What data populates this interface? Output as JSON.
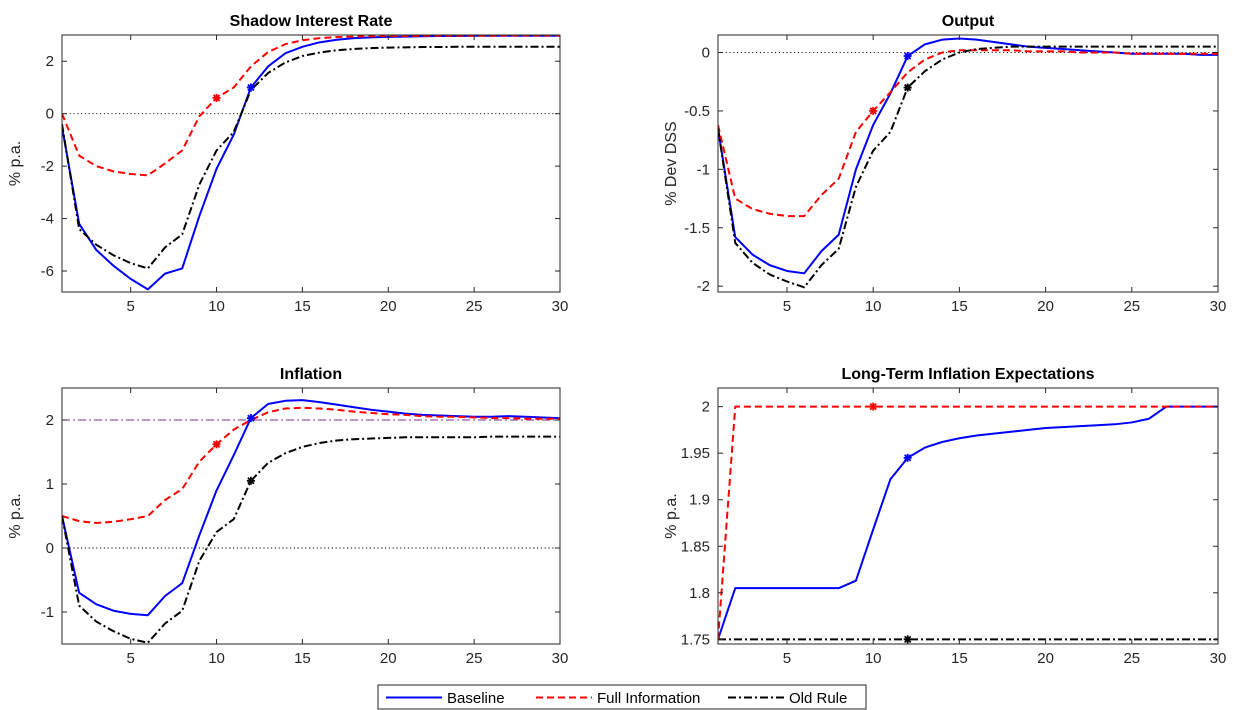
{
  "colors": {
    "baseline": "#0000ff",
    "full_information": "#ff0000",
    "old_rule": "#000000",
    "target_line": "#7e2f8e",
    "zero_line": "#000000"
  },
  "legend": {
    "placement": "bottom-center",
    "entries": [
      {
        "key": "baseline",
        "label": "Baseline",
        "style": "solid"
      },
      {
        "key": "full_information",
        "label": "Full Information",
        "style": "dashed"
      },
      {
        "key": "old_rule",
        "label": "Old Rule",
        "style": "dash-dot"
      }
    ]
  },
  "chart_data": [
    {
      "type": "line",
      "title": "Shadow Interest Rate",
      "ylabel": "% p.a.",
      "xlabel": "",
      "xlim": [
        1,
        30
      ],
      "ylim": [
        -6.8,
        3.0
      ],
      "xticks": [
        5,
        10,
        15,
        20,
        25,
        30
      ],
      "yticks": [
        -6,
        -4,
        -2,
        0,
        2
      ],
      "ref_lines": [
        {
          "y": 0,
          "style": "dotted",
          "color_key": "zero_line"
        }
      ],
      "x": [
        1,
        2,
        3,
        4,
        5,
        6,
        7,
        8,
        9,
        10,
        11,
        12,
        13,
        14,
        15,
        16,
        17,
        18,
        19,
        20,
        21,
        22,
        23,
        24,
        25,
        26,
        27,
        28,
        29,
        30
      ],
      "series": [
        {
          "name": "Baseline",
          "color_key": "baseline",
          "style": "solid",
          "values": [
            -0.5,
            -4.2,
            -5.2,
            -5.8,
            -6.3,
            -6.7,
            -6.1,
            -5.9,
            -3.9,
            -2.1,
            -0.8,
            1.0,
            1.8,
            2.3,
            2.55,
            2.72,
            2.82,
            2.88,
            2.91,
            2.93,
            2.94,
            2.95,
            2.96,
            2.96,
            2.97,
            2.97,
            2.97,
            2.97,
            2.97,
            2.97
          ],
          "markers": [
            {
              "x": 12,
              "y": 1.0
            }
          ]
        },
        {
          "name": "Full Information",
          "color_key": "full_information",
          "style": "dashed",
          "values": [
            0.0,
            -1.6,
            -2.0,
            -2.2,
            -2.3,
            -2.35,
            -1.9,
            -1.4,
            -0.1,
            0.6,
            1.0,
            1.8,
            2.35,
            2.65,
            2.8,
            2.88,
            2.92,
            2.94,
            2.95,
            2.96,
            2.96,
            2.97,
            2.97,
            2.97,
            2.97,
            2.97,
            2.98,
            2.98,
            2.98,
            2.98
          ],
          "markers": [
            {
              "x": 10,
              "y": 0.6
            }
          ]
        },
        {
          "name": "Old Rule",
          "color_key": "old_rule",
          "style": "dash-dot",
          "values": [
            -0.4,
            -4.4,
            -5.0,
            -5.4,
            -5.7,
            -5.9,
            -5.1,
            -4.6,
            -2.7,
            -1.4,
            -0.7,
            0.9,
            1.55,
            1.95,
            2.2,
            2.33,
            2.42,
            2.47,
            2.5,
            2.52,
            2.53,
            2.54,
            2.54,
            2.55,
            2.55,
            2.55,
            2.55,
            2.55,
            2.55,
            2.55
          ],
          "markers": []
        }
      ]
    },
    {
      "type": "line",
      "title": "Output",
      "ylabel": "% Dev DSS",
      "xlabel": "",
      "xlim": [
        1,
        30
      ],
      "ylim": [
        -2.05,
        0.15
      ],
      "xticks": [
        5,
        10,
        15,
        20,
        25,
        30
      ],
      "yticks": [
        -2,
        -1.5,
        -1,
        -0.5,
        0
      ],
      "ref_lines": [
        {
          "y": 0,
          "style": "dotted",
          "color_key": "zero_line"
        }
      ],
      "x": [
        1,
        2,
        3,
        4,
        5,
        6,
        7,
        8,
        9,
        10,
        11,
        12,
        13,
        14,
        15,
        16,
        17,
        18,
        19,
        20,
        21,
        22,
        23,
        24,
        25,
        26,
        27,
        28,
        29,
        30
      ],
      "series": [
        {
          "name": "Baseline",
          "color_key": "baseline",
          "style": "solid",
          "values": [
            -0.65,
            -1.58,
            -1.73,
            -1.82,
            -1.87,
            -1.89,
            -1.7,
            -1.56,
            -1.0,
            -0.62,
            -0.35,
            -0.03,
            0.07,
            0.11,
            0.12,
            0.11,
            0.09,
            0.07,
            0.05,
            0.04,
            0.03,
            0.02,
            0.01,
            0.0,
            -0.01,
            -0.01,
            -0.01,
            -0.01,
            -0.02,
            -0.02
          ],
          "markers": [
            {
              "x": 12,
              "y": -0.03
            }
          ]
        },
        {
          "name": "Full Information",
          "color_key": "full_information",
          "style": "dashed",
          "values": [
            -0.62,
            -1.25,
            -1.34,
            -1.38,
            -1.4,
            -1.4,
            -1.22,
            -1.08,
            -0.68,
            -0.5,
            -0.34,
            -0.17,
            -0.06,
            0.0,
            0.02,
            0.02,
            0.02,
            0.02,
            0.01,
            0.01,
            0.01,
            0.0,
            0.0,
            0.0,
            -0.01,
            -0.01,
            -0.01,
            -0.01,
            -0.01,
            -0.01
          ],
          "markers": [
            {
              "x": 10,
              "y": -0.5
            }
          ]
        },
        {
          "name": "Old Rule",
          "color_key": "old_rule",
          "style": "dash-dot",
          "values": [
            -0.65,
            -1.63,
            -1.8,
            -1.9,
            -1.96,
            -2.01,
            -1.82,
            -1.68,
            -1.15,
            -0.84,
            -0.68,
            -0.3,
            -0.16,
            -0.06,
            0.0,
            0.03,
            0.04,
            0.05,
            0.05,
            0.05,
            0.05,
            0.05,
            0.05,
            0.05,
            0.05,
            0.05,
            0.05,
            0.05,
            0.05,
            0.05
          ],
          "markers": [
            {
              "x": 12,
              "y": -0.3
            }
          ]
        }
      ]
    },
    {
      "type": "line",
      "title": "Inflation",
      "ylabel": "% p.a.",
      "xlabel": "",
      "xlim": [
        1,
        30
      ],
      "ylim": [
        -1.5,
        2.5
      ],
      "xticks": [
        5,
        10,
        15,
        20,
        25,
        30
      ],
      "yticks": [
        -1,
        0,
        1,
        2
      ],
      "ref_lines": [
        {
          "y": 0,
          "style": "dotted",
          "color_key": "zero_line"
        },
        {
          "y": 2,
          "style": "dash-dot",
          "color_key": "target_line"
        }
      ],
      "x": [
        1,
        2,
        3,
        4,
        5,
        6,
        7,
        8,
        9,
        10,
        11,
        12,
        13,
        14,
        15,
        16,
        17,
        18,
        19,
        20,
        21,
        22,
        23,
        24,
        25,
        26,
        27,
        28,
        29,
        30
      ],
      "series": [
        {
          "name": "Baseline",
          "color_key": "baseline",
          "style": "solid",
          "values": [
            0.5,
            -0.7,
            -0.88,
            -0.98,
            -1.03,
            -1.05,
            -0.75,
            -0.55,
            0.2,
            0.9,
            1.45,
            2.03,
            2.25,
            2.3,
            2.31,
            2.28,
            2.24,
            2.2,
            2.16,
            2.13,
            2.1,
            2.08,
            2.07,
            2.06,
            2.05,
            2.05,
            2.06,
            2.05,
            2.04,
            2.03
          ],
          "markers": [
            {
              "x": 12,
              "y": 2.03
            }
          ]
        },
        {
          "name": "Full Information",
          "color_key": "full_information",
          "style": "dashed",
          "values": [
            0.5,
            0.42,
            0.39,
            0.41,
            0.45,
            0.5,
            0.75,
            0.92,
            1.35,
            1.62,
            1.85,
            2.0,
            2.12,
            2.18,
            2.19,
            2.18,
            2.16,
            2.13,
            2.11,
            2.09,
            2.08,
            2.06,
            2.05,
            2.05,
            2.04,
            2.03,
            2.03,
            2.02,
            2.02,
            2.02
          ],
          "markers": [
            {
              "x": 10,
              "y": 1.62
            }
          ]
        },
        {
          "name": "Old Rule",
          "color_key": "old_rule",
          "style": "dash-dot",
          "values": [
            0.5,
            -0.9,
            -1.15,
            -1.3,
            -1.42,
            -1.48,
            -1.18,
            -0.98,
            -0.2,
            0.25,
            0.45,
            1.05,
            1.33,
            1.48,
            1.58,
            1.64,
            1.68,
            1.7,
            1.71,
            1.72,
            1.73,
            1.73,
            1.73,
            1.73,
            1.73,
            1.74,
            1.74,
            1.74,
            1.74,
            1.74
          ],
          "markers": [
            {
              "x": 12,
              "y": 1.05
            }
          ]
        }
      ]
    },
    {
      "type": "line",
      "title": "Long-Term Inflation Expectations",
      "ylabel": "% p.a.",
      "xlabel": "",
      "xlim": [
        1,
        30
      ],
      "ylim": [
        1.745,
        2.02
      ],
      "xticks": [
        5,
        10,
        15,
        20,
        25,
        30
      ],
      "yticks": [
        1.75,
        1.8,
        1.85,
        1.9,
        1.95,
        2
      ],
      "ref_lines": [],
      "x": [
        1,
        2,
        3,
        4,
        5,
        6,
        7,
        8,
        9,
        10,
        11,
        12,
        13,
        14,
        15,
        16,
        17,
        18,
        19,
        20,
        21,
        22,
        23,
        24,
        25,
        26,
        27,
        28,
        29,
        30
      ],
      "series": [
        {
          "name": "Baseline",
          "color_key": "baseline",
          "style": "solid",
          "values": [
            1.75,
            1.805,
            1.805,
            1.805,
            1.805,
            1.805,
            1.805,
            1.805,
            1.813,
            1.868,
            1.922,
            1.945,
            1.956,
            1.962,
            1.966,
            1.969,
            1.971,
            1.973,
            1.975,
            1.977,
            1.978,
            1.979,
            1.98,
            1.981,
            1.983,
            1.987,
            2.0,
            2.0,
            2.0,
            2.0
          ],
          "markers": [
            {
              "x": 12,
              "y": 1.945
            }
          ]
        },
        {
          "name": "Full Information",
          "color_key": "full_information",
          "style": "dashed",
          "values": [
            1.75,
            2.0,
            2.0,
            2.0,
            2.0,
            2.0,
            2.0,
            2.0,
            2.0,
            2.0,
            2.0,
            2.0,
            2.0,
            2.0,
            2.0,
            2.0,
            2.0,
            2.0,
            2.0,
            2.0,
            2.0,
            2.0,
            2.0,
            2.0,
            2.0,
            2.0,
            2.0,
            2.0,
            2.0,
            2.0
          ],
          "markers": [
            {
              "x": 10,
              "y": 2.0
            }
          ]
        },
        {
          "name": "Old Rule",
          "color_key": "old_rule",
          "style": "dash-dot",
          "values": [
            1.75,
            1.75,
            1.75,
            1.75,
            1.75,
            1.75,
            1.75,
            1.75,
            1.75,
            1.75,
            1.75,
            1.75,
            1.75,
            1.75,
            1.75,
            1.75,
            1.75,
            1.75,
            1.75,
            1.75,
            1.75,
            1.75,
            1.75,
            1.75,
            1.75,
            1.75,
            1.75,
            1.75,
            1.75,
            1.75
          ],
          "markers": [
            {
              "x": 12,
              "y": 1.75
            }
          ]
        }
      ]
    }
  ]
}
